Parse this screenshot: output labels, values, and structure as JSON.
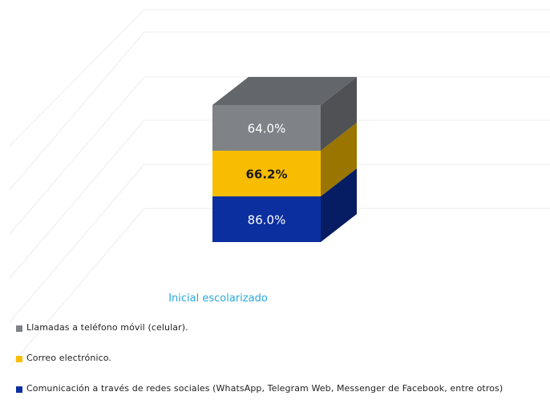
{
  "chart_data": {
    "type": "bar",
    "stacked": true,
    "three_d": true,
    "categories": [
      "Inicial escolarizado"
    ],
    "series": [
      {
        "name": "Comunicación a través de redes sociales (WhatsApp, Telegram Web, Messenger de Facebook, entre otros)",
        "values": [
          86.0
        ],
        "label": "86.0%",
        "color": "#0b2f9f",
        "label_color": "#ffffff"
      },
      {
        "name": "Correo electrónico.",
        "values": [
          66.2
        ],
        "label": "66.2%",
        "color": "#f9bd00",
        "label_color": "#1a1a1a"
      },
      {
        "name": "Llamadas a teléfono móvil (celular).",
        "values": [
          64.0
        ],
        "label": "64.0%",
        "color": "#7f8388",
        "label_color": "#ffffff"
      }
    ],
    "legend_order": [
      2,
      1,
      0
    ],
    "legend_position": "bottom-left",
    "grid": true,
    "category_label_color": "#2aa8dc"
  }
}
